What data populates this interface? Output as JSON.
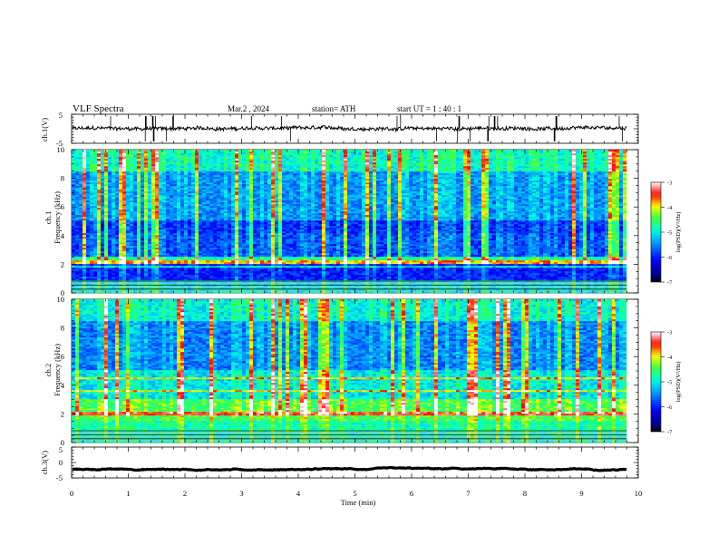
{
  "header": {
    "title": "VLF  Spectra",
    "date": "Mar.2  , 2024",
    "station": "station= ATH",
    "start_ut": "start  UT  =   1  : 40 : 1"
  },
  "chart_data": [
    {
      "type": "line",
      "panel": "ch1-waveform",
      "ylabel": "ch.1(V)",
      "ylim": [
        -5,
        5
      ],
      "yticks": [
        "5",
        "-5"
      ],
      "xlim": [
        0,
        10
      ],
      "x_end": 9.8,
      "baseline_v": 0.1,
      "noise_v": 0.6
    },
    {
      "type": "heatmap",
      "panel": "ch1-spectrogram",
      "ylabel": "ch.1\nFrequency  (kHz)",
      "ylim": [
        0,
        10
      ],
      "yticks": [
        "0",
        "2",
        "4",
        "6",
        "8",
        "10"
      ],
      "xlim": [
        0,
        10
      ],
      "x_end": 9.8,
      "colorbar": {
        "label": "log(PSD)(V²/Hz)",
        "range": [
          -7,
          -3
        ],
        "ticks": [
          "-3",
          "-4",
          "-5",
          "-6",
          "-7"
        ]
      }
    },
    {
      "type": "heatmap",
      "panel": "ch2-spectrogram",
      "ylabel": "ch.2\nFrequency  (kHz)",
      "ylim": [
        0,
        10
      ],
      "yticks": [
        "0",
        "2",
        "4",
        "6",
        "8",
        "10"
      ],
      "xlim": [
        0,
        10
      ],
      "x_end": 9.8,
      "colorbar": {
        "label": "log(PSD)(V²/Hz)",
        "range": [
          -7,
          -3
        ],
        "ticks": [
          "-3",
          "-4",
          "-5",
          "-6",
          "-7"
        ]
      }
    },
    {
      "type": "line",
      "panel": "ch3-waveform",
      "ylabel": "ch.3(V)",
      "ylim": [
        -5,
        5
      ],
      "yticks": [
        "5",
        "0",
        "-5"
      ],
      "xlim": [
        0,
        10
      ],
      "x_end": 9.8,
      "baseline_v": -2.2,
      "noise_v": 0.05,
      "xlabel": "Time  (min)",
      "xticks": [
        "0",
        "1",
        "2",
        "3",
        "4",
        "5",
        "6",
        "7",
        "8",
        "9",
        "10"
      ]
    }
  ]
}
